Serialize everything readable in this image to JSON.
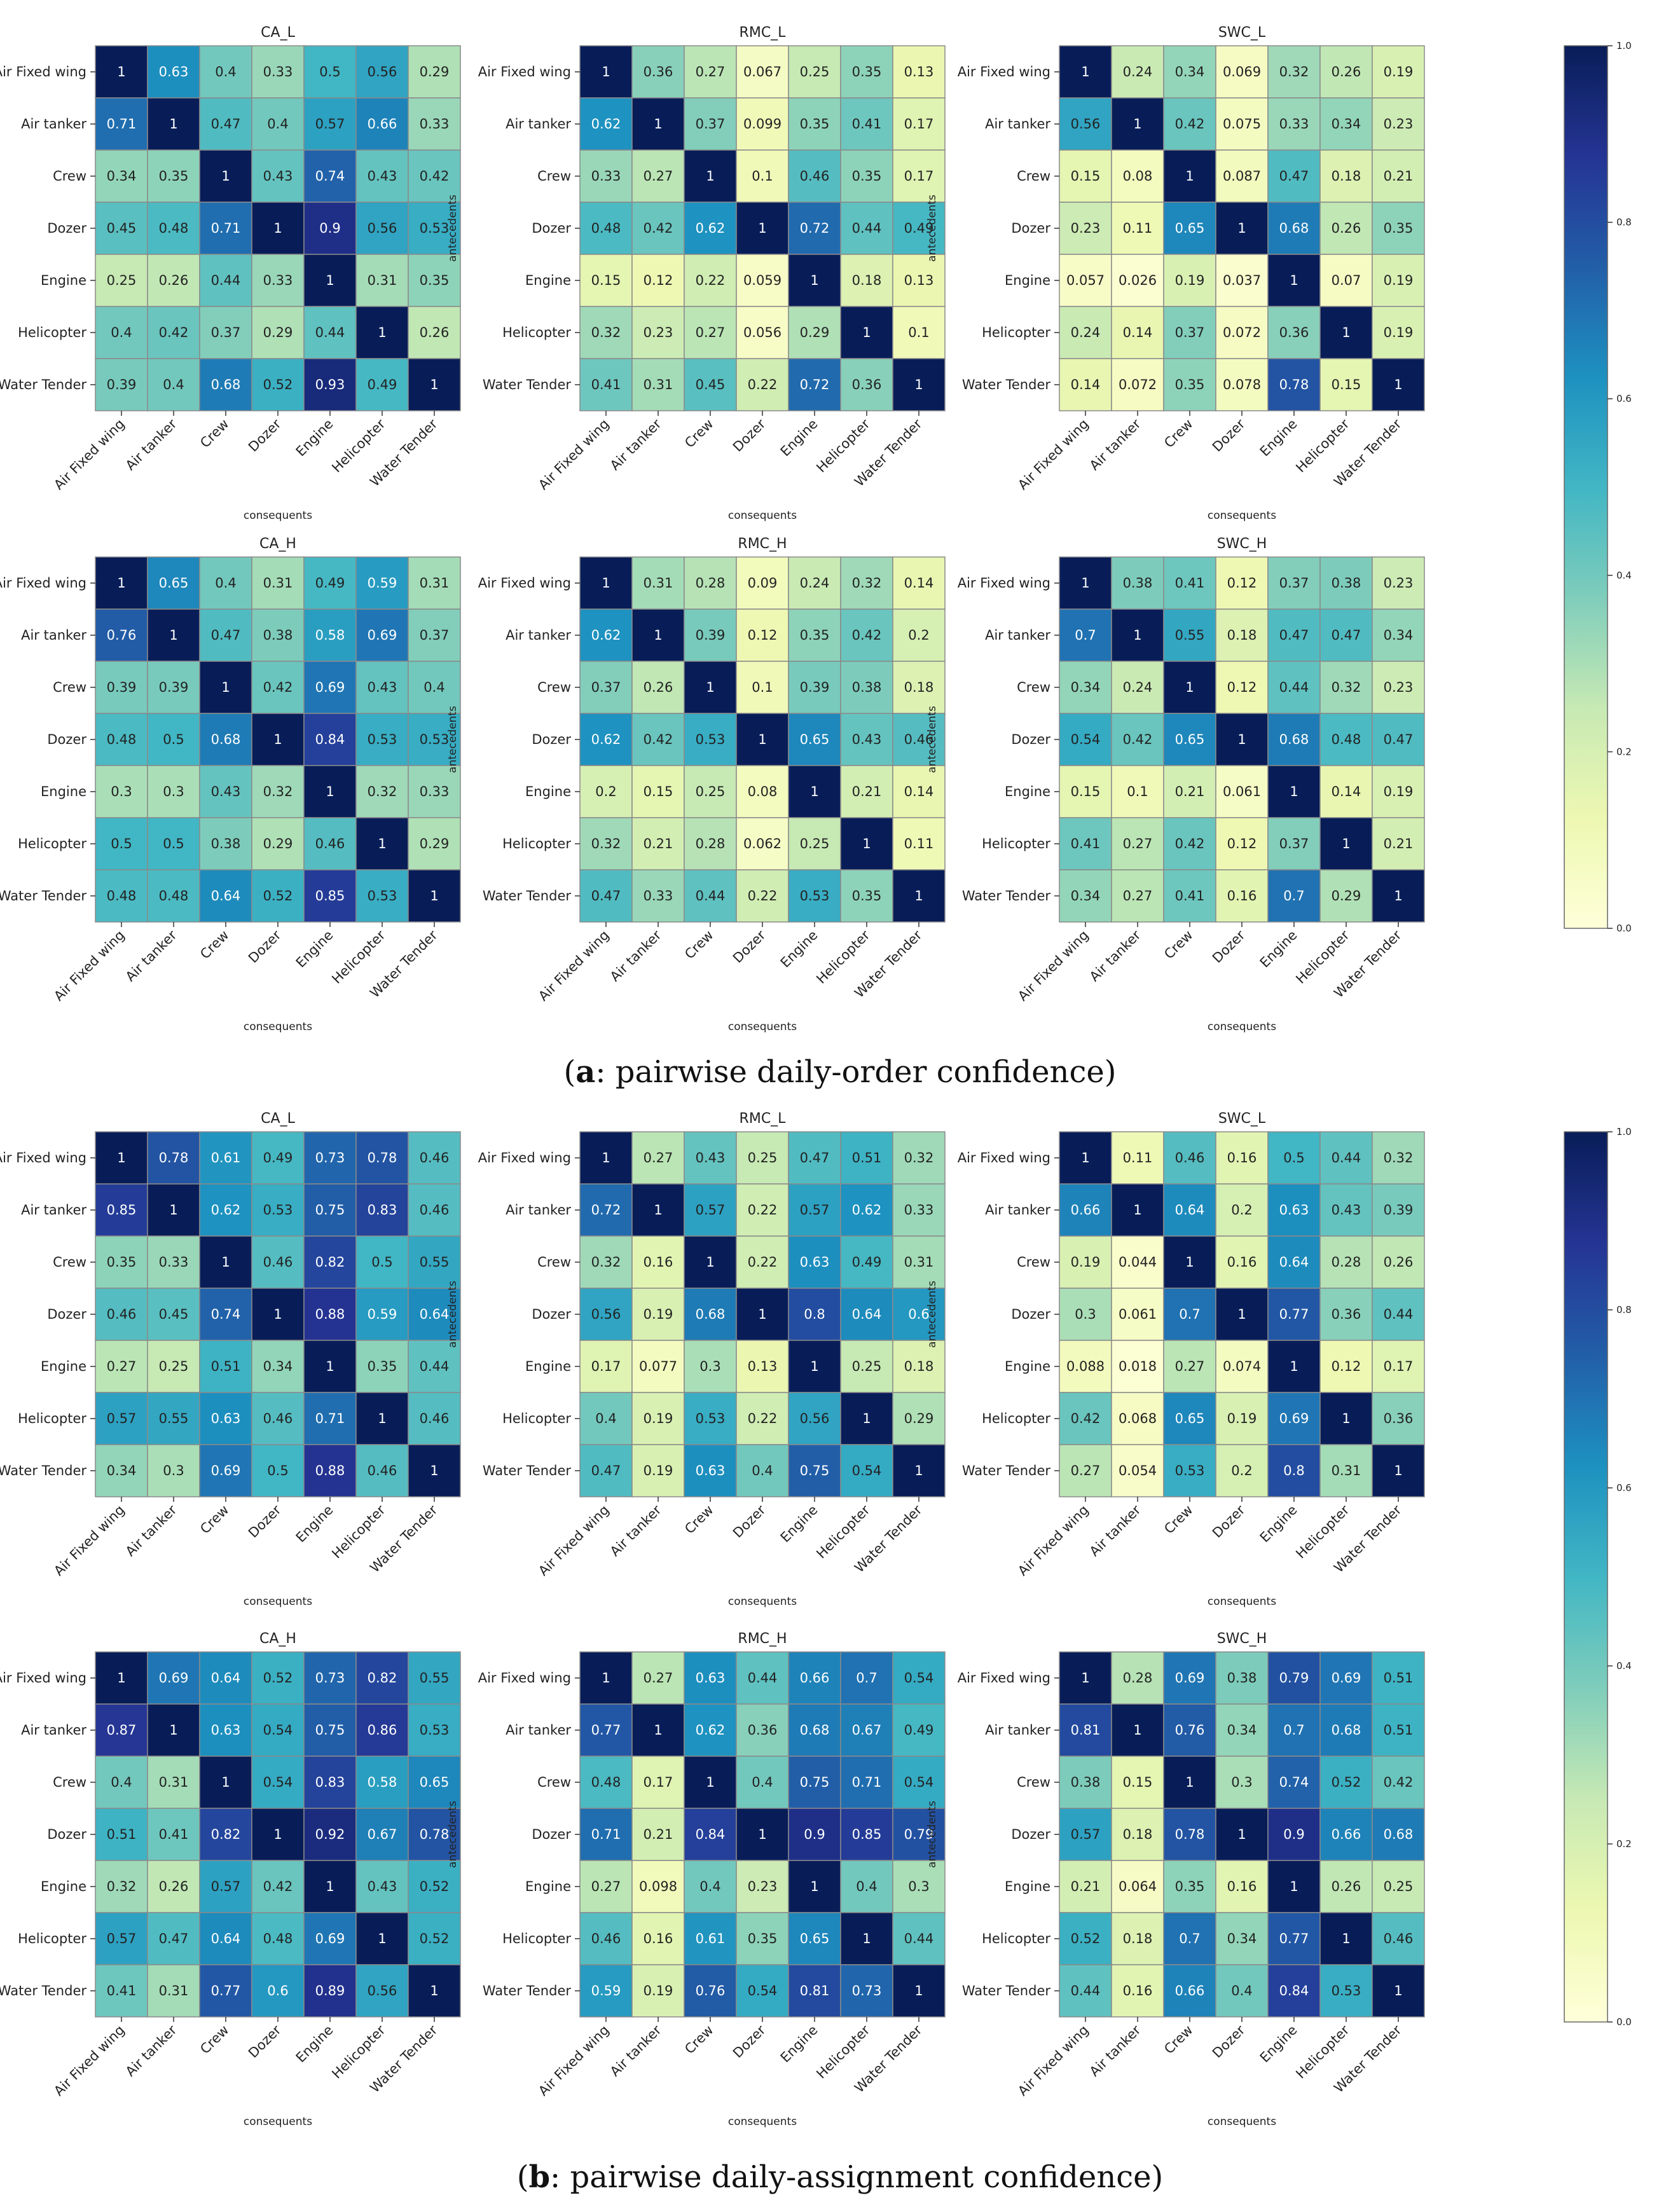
{
  "figure": {
    "captions": [
      {
        "prefix": "(",
        "bold": "a",
        "rest": ": pairwise daily-order confidence)"
      },
      {
        "prefix": "(",
        "bold": "b",
        "rest": ": pairwise daily-assignment confidence)"
      }
    ]
  },
  "chart_data": {
    "type": "heatmap",
    "colormap": "YlGnBu",
    "vmin": 0.0,
    "vmax": 1.0,
    "rows": [
      "Air Fixed wing",
      "Air tanker",
      "Crew",
      "Dozer",
      "Engine",
      "Helicopter",
      "Water Tender"
    ],
    "cols": [
      "Air Fixed wing",
      "Air tanker",
      "Crew",
      "Dozer",
      "Engine",
      "Helicopter",
      "Water Tender"
    ],
    "xlabel": "consequents",
    "ylabel": "antecedents",
    "colorbar_ticks": [
      "0.0",
      "0.2",
      "0.4",
      "0.6",
      "0.8",
      "1.0"
    ],
    "panels": [
      {
        "panel": "a",
        "title": "CA_L",
        "values": [
          [
            "1",
            "0.63",
            "0.4",
            "0.33",
            "0.5",
            "0.56",
            "0.29"
          ],
          [
            "0.71",
            "1",
            "0.47",
            "0.4",
            "0.57",
            "0.66",
            "0.33"
          ],
          [
            "0.34",
            "0.35",
            "1",
            "0.43",
            "0.74",
            "0.43",
            "0.42"
          ],
          [
            "0.45",
            "0.48",
            "0.71",
            "1",
            "0.9",
            "0.56",
            "0.53"
          ],
          [
            "0.25",
            "0.26",
            "0.44",
            "0.33",
            "1",
            "0.31",
            "0.35"
          ],
          [
            "0.4",
            "0.42",
            "0.37",
            "0.29",
            "0.44",
            "1",
            "0.26"
          ],
          [
            "0.39",
            "0.4",
            "0.68",
            "0.52",
            "0.93",
            "0.49",
            "1"
          ]
        ]
      },
      {
        "panel": "a",
        "title": "RMC_L",
        "values": [
          [
            "1",
            "0.36",
            "0.27",
            "0.067",
            "0.25",
            "0.35",
            "0.13"
          ],
          [
            "0.62",
            "1",
            "0.37",
            "0.099",
            "0.35",
            "0.41",
            "0.17"
          ],
          [
            "0.33",
            "0.27",
            "1",
            "0.1",
            "0.46",
            "0.35",
            "0.17"
          ],
          [
            "0.48",
            "0.42",
            "0.62",
            "1",
            "0.72",
            "0.44",
            "0.49"
          ],
          [
            "0.15",
            "0.12",
            "0.22",
            "0.059",
            "1",
            "0.18",
            "0.13"
          ],
          [
            "0.32",
            "0.23",
            "0.27",
            "0.056",
            "0.29",
            "1",
            "0.1"
          ],
          [
            "0.41",
            "0.31",
            "0.45",
            "0.22",
            "0.72",
            "0.36",
            "1"
          ]
        ]
      },
      {
        "panel": "a",
        "title": "SWC_L",
        "values": [
          [
            "1",
            "0.24",
            "0.34",
            "0.069",
            "0.32",
            "0.26",
            "0.19"
          ],
          [
            "0.56",
            "1",
            "0.42",
            "0.075",
            "0.33",
            "0.34",
            "0.23"
          ],
          [
            "0.15",
            "0.08",
            "1",
            "0.087",
            "0.47",
            "0.18",
            "0.21"
          ],
          [
            "0.23",
            "0.11",
            "0.65",
            "1",
            "0.68",
            "0.26",
            "0.35"
          ],
          [
            "0.057",
            "0.026",
            "0.19",
            "0.037",
            "1",
            "0.07",
            "0.19"
          ],
          [
            "0.24",
            "0.14",
            "0.37",
            "0.072",
            "0.36",
            "1",
            "0.19"
          ],
          [
            "0.14",
            "0.072",
            "0.35",
            "0.078",
            "0.78",
            "0.15",
            "1"
          ]
        ]
      },
      {
        "panel": "a",
        "title": "CA_H",
        "values": [
          [
            "1",
            "0.65",
            "0.4",
            "0.31",
            "0.49",
            "0.59",
            "0.31"
          ],
          [
            "0.76",
            "1",
            "0.47",
            "0.38",
            "0.58",
            "0.69",
            "0.37"
          ],
          [
            "0.39",
            "0.39",
            "1",
            "0.42",
            "0.69",
            "0.43",
            "0.4"
          ],
          [
            "0.48",
            "0.5",
            "0.68",
            "1",
            "0.84",
            "0.53",
            "0.53"
          ],
          [
            "0.3",
            "0.3",
            "0.43",
            "0.32",
            "1",
            "0.32",
            "0.33"
          ],
          [
            "0.5",
            "0.5",
            "0.38",
            "0.29",
            "0.46",
            "1",
            "0.29"
          ],
          [
            "0.48",
            "0.48",
            "0.64",
            "0.52",
            "0.85",
            "0.53",
            "1"
          ]
        ]
      },
      {
        "panel": "a",
        "title": "RMC_H",
        "values": [
          [
            "1",
            "0.31",
            "0.28",
            "0.09",
            "0.24",
            "0.32",
            "0.14"
          ],
          [
            "0.62",
            "1",
            "0.39",
            "0.12",
            "0.35",
            "0.42",
            "0.2"
          ],
          [
            "0.37",
            "0.26",
            "1",
            "0.1",
            "0.39",
            "0.38",
            "0.18"
          ],
          [
            "0.62",
            "0.42",
            "0.53",
            "1",
            "0.65",
            "0.43",
            "0.46"
          ],
          [
            "0.2",
            "0.15",
            "0.25",
            "0.08",
            "1",
            "0.21",
            "0.14"
          ],
          [
            "0.32",
            "0.21",
            "0.28",
            "0.062",
            "0.25",
            "1",
            "0.11"
          ],
          [
            "0.47",
            "0.33",
            "0.44",
            "0.22",
            "0.53",
            "0.35",
            "1"
          ]
        ]
      },
      {
        "panel": "a",
        "title": "SWC_H",
        "values": [
          [
            "1",
            "0.38",
            "0.41",
            "0.12",
            "0.37",
            "0.38",
            "0.23"
          ],
          [
            "0.7",
            "1",
            "0.55",
            "0.18",
            "0.47",
            "0.47",
            "0.34"
          ],
          [
            "0.34",
            "0.24",
            "1",
            "0.12",
            "0.44",
            "0.32",
            "0.23"
          ],
          [
            "0.54",
            "0.42",
            "0.65",
            "1",
            "0.68",
            "0.48",
            "0.47"
          ],
          [
            "0.15",
            "0.1",
            "0.21",
            "0.061",
            "1",
            "0.14",
            "0.19"
          ],
          [
            "0.41",
            "0.27",
            "0.42",
            "0.12",
            "0.37",
            "1",
            "0.21"
          ],
          [
            "0.34",
            "0.27",
            "0.41",
            "0.16",
            "0.7",
            "0.29",
            "1"
          ]
        ]
      },
      {
        "panel": "b",
        "title": "CA_L",
        "values": [
          [
            "1",
            "0.78",
            "0.61",
            "0.49",
            "0.73",
            "0.78",
            "0.46"
          ],
          [
            "0.85",
            "1",
            "0.62",
            "0.53",
            "0.75",
            "0.83",
            "0.46"
          ],
          [
            "0.35",
            "0.33",
            "1",
            "0.46",
            "0.82",
            "0.5",
            "0.55"
          ],
          [
            "0.46",
            "0.45",
            "0.74",
            "1",
            "0.88",
            "0.59",
            "0.64"
          ],
          [
            "0.27",
            "0.25",
            "0.51",
            "0.34",
            "1",
            "0.35",
            "0.44"
          ],
          [
            "0.57",
            "0.55",
            "0.63",
            "0.46",
            "0.71",
            "1",
            "0.46"
          ],
          [
            "0.34",
            "0.3",
            "0.69",
            "0.5",
            "0.88",
            "0.46",
            "1"
          ]
        ]
      },
      {
        "panel": "b",
        "title": "RMC_L",
        "values": [
          [
            "1",
            "0.27",
            "0.43",
            "0.25",
            "0.47",
            "0.51",
            "0.32"
          ],
          [
            "0.72",
            "1",
            "0.57",
            "0.22",
            "0.57",
            "0.62",
            "0.33"
          ],
          [
            "0.32",
            "0.16",
            "1",
            "0.22",
            "0.63",
            "0.49",
            "0.31"
          ],
          [
            "0.56",
            "0.19",
            "0.68",
            "1",
            "0.8",
            "0.64",
            "0.6"
          ],
          [
            "0.17",
            "0.077",
            "0.3",
            "0.13",
            "1",
            "0.25",
            "0.18"
          ],
          [
            "0.4",
            "0.19",
            "0.53",
            "0.22",
            "0.56",
            "1",
            "0.29"
          ],
          [
            "0.47",
            "0.19",
            "0.63",
            "0.4",
            "0.75",
            "0.54",
            "1"
          ]
        ]
      },
      {
        "panel": "b",
        "title": "SWC_L",
        "values": [
          [
            "1",
            "0.11",
            "0.46",
            "0.16",
            "0.5",
            "0.44",
            "0.32"
          ],
          [
            "0.66",
            "1",
            "0.64",
            "0.2",
            "0.63",
            "0.43",
            "0.39"
          ],
          [
            "0.19",
            "0.044",
            "1",
            "0.16",
            "0.64",
            "0.28",
            "0.26"
          ],
          [
            "0.3",
            "0.061",
            "0.7",
            "1",
            "0.77",
            "0.36",
            "0.44"
          ],
          [
            "0.088",
            "0.018",
            "0.27",
            "0.074",
            "1",
            "0.12",
            "0.17"
          ],
          [
            "0.42",
            "0.068",
            "0.65",
            "0.19",
            "0.69",
            "1",
            "0.36"
          ],
          [
            "0.27",
            "0.054",
            "0.53",
            "0.2",
            "0.8",
            "0.31",
            "1"
          ]
        ]
      },
      {
        "panel": "b",
        "title": "CA_H",
        "values": [
          [
            "1",
            "0.69",
            "0.64",
            "0.52",
            "0.73",
            "0.82",
            "0.55"
          ],
          [
            "0.87",
            "1",
            "0.63",
            "0.54",
            "0.75",
            "0.86",
            "0.53"
          ],
          [
            "0.4",
            "0.31",
            "1",
            "0.54",
            "0.83",
            "0.58",
            "0.65"
          ],
          [
            "0.51",
            "0.41",
            "0.82",
            "1",
            "0.92",
            "0.67",
            "0.78"
          ],
          [
            "0.32",
            "0.26",
            "0.57",
            "0.42",
            "1",
            "0.43",
            "0.52"
          ],
          [
            "0.57",
            "0.47",
            "0.64",
            "0.48",
            "0.69",
            "1",
            "0.52"
          ],
          [
            "0.41",
            "0.31",
            "0.77",
            "0.6",
            "0.89",
            "0.56",
            "1"
          ]
        ]
      },
      {
        "panel": "b",
        "title": "RMC_H",
        "values": [
          [
            "1",
            "0.27",
            "0.63",
            "0.44",
            "0.66",
            "0.7",
            "0.54"
          ],
          [
            "0.77",
            "1",
            "0.62",
            "0.36",
            "0.68",
            "0.67",
            "0.49"
          ],
          [
            "0.48",
            "0.17",
            "1",
            "0.4",
            "0.75",
            "0.71",
            "0.54"
          ],
          [
            "0.71",
            "0.21",
            "0.84",
            "1",
            "0.9",
            "0.85",
            "0.79"
          ],
          [
            "0.27",
            "0.098",
            "0.4",
            "0.23",
            "1",
            "0.4",
            "0.3"
          ],
          [
            "0.46",
            "0.16",
            "0.61",
            "0.35",
            "0.65",
            "1",
            "0.44"
          ],
          [
            "0.59",
            "0.19",
            "0.76",
            "0.54",
            "0.81",
            "0.73",
            "1"
          ]
        ]
      },
      {
        "panel": "b",
        "title": "SWC_H",
        "values": [
          [
            "1",
            "0.28",
            "0.69",
            "0.38",
            "0.79",
            "0.69",
            "0.51"
          ],
          [
            "0.81",
            "1",
            "0.76",
            "0.34",
            "0.7",
            "0.68",
            "0.51"
          ],
          [
            "0.38",
            "0.15",
            "1",
            "0.3",
            "0.74",
            "0.52",
            "0.42"
          ],
          [
            "0.57",
            "0.18",
            "0.78",
            "1",
            "0.9",
            "0.66",
            "0.68"
          ],
          [
            "0.21",
            "0.064",
            "0.35",
            "0.16",
            "1",
            "0.26",
            "0.25"
          ],
          [
            "0.52",
            "0.18",
            "0.7",
            "0.34",
            "0.77",
            "1",
            "0.46"
          ],
          [
            "0.44",
            "0.16",
            "0.66",
            "0.4",
            "0.84",
            "0.53",
            "1"
          ]
        ]
      }
    ]
  }
}
